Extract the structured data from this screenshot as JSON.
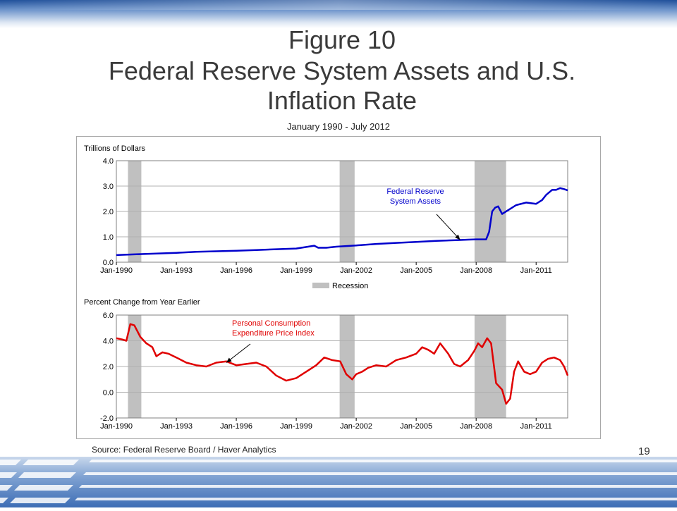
{
  "slide": {
    "title_line1": "Figure 10",
    "title_line2": "Federal Reserve System Assets and U.S.",
    "title_line3": "Inflation Rate",
    "subtitle": "January 1990 - July 2012",
    "source": "Source:  Federal Reserve Board / Haver Analytics",
    "page_number": "19"
  },
  "colors": {
    "assets": "#0000cc",
    "pce": "#e00000",
    "recession": "#c0c0c0",
    "grid": "#b0b0b0"
  },
  "chart_data": [
    {
      "type": "line",
      "ylabel": "Trillions of Dollars",
      "ylim": [
        0,
        4
      ],
      "yticks": [
        "0.0",
        "1.0",
        "2.0",
        "3.0",
        "4.0"
      ],
      "xlim": [
        1990.0,
        2012.58
      ],
      "xticks": [
        "Jan-1990",
        "Jan-1993",
        "Jan-1996",
        "Jan-1999",
        "Jan-2002",
        "Jan-2005",
        "Jan-2008",
        "Jan-2011"
      ],
      "grid": true,
      "legend": {
        "label": "Recession",
        "placement": "bottom"
      },
      "recessions": [
        [
          1990.58,
          1991.25
        ],
        [
          2001.17,
          2001.92
        ],
        [
          2007.92,
          2009.5
        ]
      ],
      "annotation": {
        "lines": [
          "Federal Reserve",
          "System Assets"
        ],
        "points_to": [
          2007.2,
          0.88
        ]
      },
      "series": [
        {
          "name": "Federal Reserve System Assets",
          "x": [
            1990.0,
            1991.0,
            1992.0,
            1993.0,
            1994.0,
            1995.0,
            1996.0,
            1997.0,
            1998.0,
            1999.0,
            1999.9,
            2000.1,
            2000.5,
            2001.0,
            2002.0,
            2003.0,
            2004.0,
            2005.0,
            2006.0,
            2007.0,
            2007.6,
            2008.0,
            2008.5,
            2008.65,
            2008.8,
            2008.95,
            2009.1,
            2009.3,
            2009.6,
            2010.0,
            2010.5,
            2011.0,
            2011.3,
            2011.5,
            2011.8,
            2012.0,
            2012.2,
            2012.4,
            2012.58
          ],
          "values": [
            0.28,
            0.31,
            0.34,
            0.37,
            0.41,
            0.43,
            0.45,
            0.48,
            0.51,
            0.54,
            0.65,
            0.57,
            0.57,
            0.61,
            0.66,
            0.72,
            0.76,
            0.8,
            0.84,
            0.87,
            0.89,
            0.9,
            0.9,
            1.2,
            2.0,
            2.15,
            2.2,
            1.9,
            2.05,
            2.25,
            2.35,
            2.3,
            2.45,
            2.65,
            2.85,
            2.85,
            2.92,
            2.88,
            2.83
          ]
        }
      ]
    },
    {
      "type": "line",
      "ylabel": "Percent Change from Year Earlier",
      "ylim": [
        -2,
        6
      ],
      "yticks": [
        "-2.0",
        "0.0",
        "2.0",
        "4.0",
        "6.0"
      ],
      "xlim": [
        1990.0,
        2012.58
      ],
      "xticks": [
        "Jan-1990",
        "Jan-1993",
        "Jan-1996",
        "Jan-1999",
        "Jan-2002",
        "Jan-2005",
        "Jan-2008",
        "Jan-2011"
      ],
      "grid": true,
      "recessions": [
        [
          1990.58,
          1991.25
        ],
        [
          2001.17,
          2001.92
        ],
        [
          2007.92,
          2009.5
        ]
      ],
      "annotation": {
        "lines": [
          "Personal Consumption",
          "Expenditure Price Index"
        ],
        "points_to": [
          1995.5,
          2.3
        ]
      },
      "series": [
        {
          "name": "Personal Consumption Expenditure Price Index",
          "x": [
            1990.0,
            1990.3,
            1990.5,
            1990.7,
            1990.9,
            1991.2,
            1991.5,
            1991.8,
            1992.0,
            1992.3,
            1992.6,
            1993.0,
            1993.5,
            1994.0,
            1994.5,
            1995.0,
            1995.5,
            1996.0,
            1996.5,
            1997.0,
            1997.5,
            1998.0,
            1998.5,
            1999.0,
            1999.5,
            2000.0,
            2000.4,
            2000.8,
            2001.2,
            2001.5,
            2001.8,
            2002.0,
            2002.3,
            2002.6,
            2003.0,
            2003.5,
            2004.0,
            2004.5,
            2005.0,
            2005.3,
            2005.6,
            2005.9,
            2006.2,
            2006.6,
            2006.9,
            2007.2,
            2007.6,
            2007.9,
            2008.1,
            2008.3,
            2008.55,
            2008.75,
            2009.0,
            2009.3,
            2009.5,
            2009.7,
            2009.9,
            2010.1,
            2010.4,
            2010.7,
            2011.0,
            2011.3,
            2011.6,
            2011.9,
            2012.2,
            2012.4,
            2012.58
          ],
          "values": [
            4.2,
            4.1,
            4.0,
            5.3,
            5.2,
            4.3,
            3.8,
            3.5,
            2.8,
            3.1,
            3.0,
            2.7,
            2.3,
            2.1,
            2.0,
            2.3,
            2.4,
            2.1,
            2.2,
            2.3,
            2.0,
            1.3,
            0.9,
            1.1,
            1.6,
            2.1,
            2.7,
            2.5,
            2.4,
            1.4,
            1.0,
            1.4,
            1.6,
            1.9,
            2.1,
            2.0,
            2.5,
            2.7,
            3.0,
            3.5,
            3.3,
            3.0,
            3.8,
            3.0,
            2.2,
            2.0,
            2.5,
            3.2,
            3.8,
            3.5,
            4.2,
            3.8,
            0.7,
            0.2,
            -0.9,
            -0.5,
            1.6,
            2.4,
            1.6,
            1.4,
            1.6,
            2.3,
            2.6,
            2.7,
            2.5,
            2.0,
            1.3
          ]
        }
      ]
    }
  ]
}
